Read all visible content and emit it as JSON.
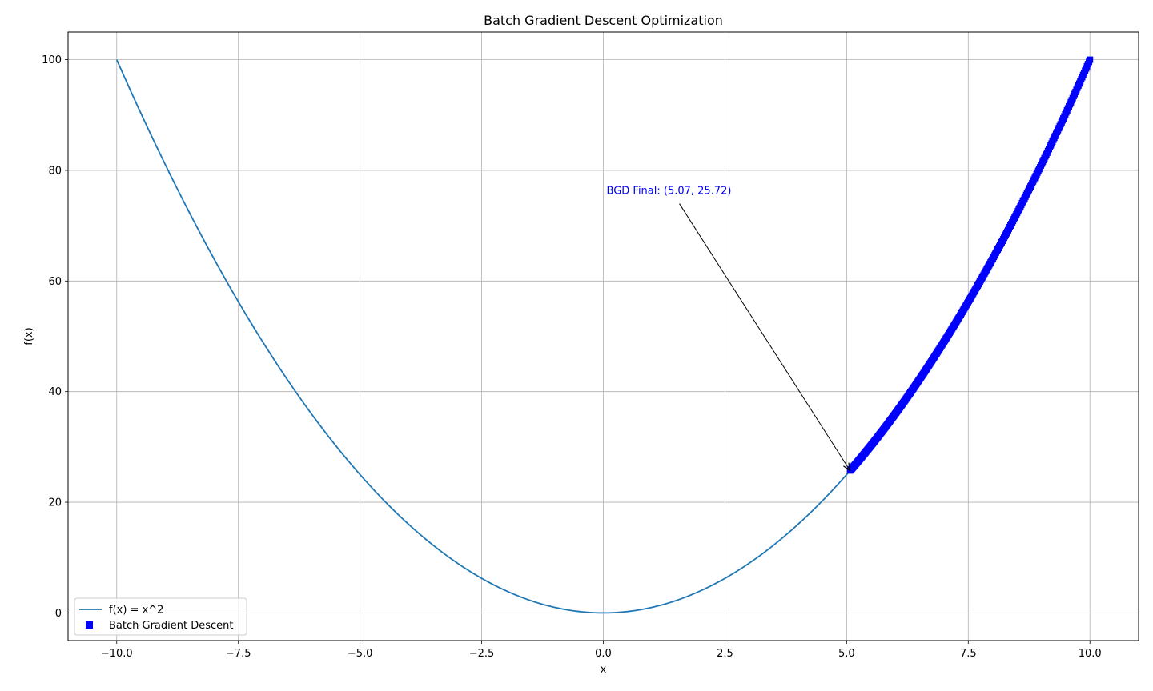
{
  "chart_data": {
    "type": "line",
    "title": "Batch Gradient Descent Optimization",
    "xlabel": "x",
    "ylabel": "f(x)",
    "xlim": [
      -11.0,
      11.0
    ],
    "ylim": [
      -5.0,
      105.0
    ],
    "xticks": [
      -10.0,
      -7.5,
      -5.0,
      -2.5,
      0.0,
      2.5,
      5.0,
      7.5,
      10.0
    ],
    "xtick_labels": [
      "−10.0",
      "−7.5",
      "−5.0",
      "−2.5",
      "0.0",
      "2.5",
      "5.0",
      "7.5",
      "10.0"
    ],
    "yticks": [
      0,
      20,
      40,
      60,
      80,
      100
    ],
    "ytick_labels": [
      "0",
      "20",
      "40",
      "60",
      "80",
      "100"
    ],
    "grid": true,
    "legend_position": "lower-left",
    "series": [
      {
        "name": "f(x) = x^2",
        "kind": "line",
        "color": "#1f77b4",
        "function": "x^2",
        "x_range": [
          -10.0,
          10.0
        ]
      },
      {
        "name": "Batch Gradient Descent",
        "kind": "scatter",
        "marker": "square",
        "color": "#0000ff",
        "x_range": [
          5.07,
          10.0
        ],
        "function": "x^2"
      }
    ],
    "annotations": [
      {
        "text": "BGD Final: (5.07, 25.72)",
        "color": "#0000ff",
        "point": [
          5.07,
          25.72
        ],
        "text_at": [
          0.0,
          75.72
        ]
      }
    ]
  }
}
